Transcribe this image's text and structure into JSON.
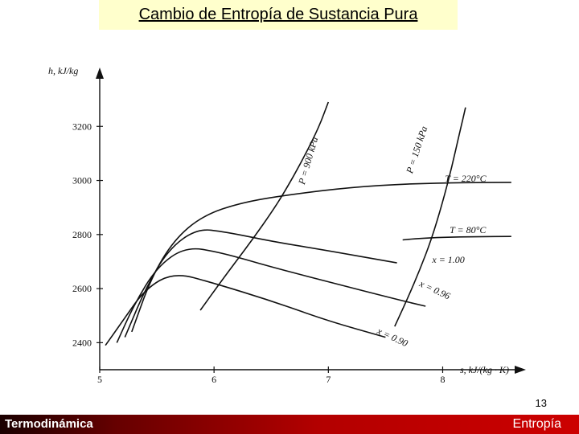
{
  "slide": {
    "title": "Cambio de Entropía de Sustancia Pura",
    "page_number": "13",
    "footer_left": "Termodinámica",
    "footer_right": "Entropía"
  },
  "colors": {
    "title_background": "#ffffcc",
    "footer_gradient_start": "#1a0000",
    "footer_gradient_end": "#cc0000",
    "curve_color": "#111111"
  },
  "chart_data": {
    "type": "line",
    "xlabel": "s, kJ/(kg · K)",
    "ylabel": "h, kJ/kg",
    "xlim": [
      5.0,
      8.7
    ],
    "ylim": [
      2300,
      3400
    ],
    "x_ticks": [
      {
        "value": 5,
        "label": "5"
      },
      {
        "value": 6,
        "label": "6"
      },
      {
        "value": 7,
        "label": "7"
      },
      {
        "value": 8,
        "label": "8"
      }
    ],
    "y_ticks": [
      {
        "value": 2400,
        "label": "2400"
      },
      {
        "value": 2600,
        "label": "2600"
      },
      {
        "value": 2800,
        "label": "2800"
      },
      {
        "value": 3000,
        "label": "3000"
      },
      {
        "value": 3200,
        "label": "3200"
      }
    ],
    "grid": false,
    "series": [
      {
        "name": "P = 900 kPa",
        "label_at": [
          6.85,
          3070
        ],
        "label_angle": -74,
        "points": [
          [
            5.88,
            2520
          ],
          [
            6.05,
            2620
          ],
          [
            6.2,
            2705
          ],
          [
            6.35,
            2790
          ],
          [
            6.5,
            2880
          ],
          [
            6.62,
            2960
          ],
          [
            6.78,
            3080
          ],
          [
            6.92,
            3200
          ],
          [
            7.0,
            3290
          ]
        ]
      },
      {
        "name": "P = 150 kPa",
        "label_at": [
          7.8,
          3110
        ],
        "label_angle": -72,
        "points": [
          [
            7.58,
            2460
          ],
          [
            7.7,
            2570
          ],
          [
            7.8,
            2670
          ],
          [
            7.9,
            2780
          ],
          [
            8.0,
            2920
          ],
          [
            8.08,
            3050
          ],
          [
            8.15,
            3180
          ],
          [
            8.2,
            3270
          ]
        ]
      },
      {
        "name": "T = 220°C",
        "label_at": [
          8.2,
          2995
        ],
        "label_angle": 0,
        "points": [
          [
            5.28,
            2440
          ],
          [
            5.45,
            2640
          ],
          [
            5.65,
            2780
          ],
          [
            5.9,
            2870
          ],
          [
            6.25,
            2920
          ],
          [
            6.7,
            2950
          ],
          [
            7.2,
            2975
          ],
          [
            7.7,
            2988
          ],
          [
            8.2,
            2992
          ],
          [
            8.6,
            2993
          ]
        ]
      },
      {
        "name": "T = 80°C",
        "label_at": [
          8.22,
          2805
        ],
        "label_angle": 0,
        "points": [
          [
            7.65,
            2780
          ],
          [
            7.8,
            2786
          ],
          [
            8.0,
            2790
          ],
          [
            8.3,
            2792
          ],
          [
            8.6,
            2793
          ]
        ]
      },
      {
        "name": "x = 1.00",
        "label_at": [
          8.05,
          2695
        ],
        "label_angle": 0,
        "points": [
          [
            5.22,
            2420
          ],
          [
            5.4,
            2600
          ],
          [
            5.6,
            2745
          ],
          [
            5.85,
            2822
          ],
          [
            6.1,
            2810
          ],
          [
            6.5,
            2775
          ],
          [
            7.0,
            2740
          ],
          [
            7.6,
            2695
          ]
        ]
      },
      {
        "name": "x = 0.96",
        "label_at": [
          7.92,
          2585
        ],
        "label_angle": 25,
        "points": [
          [
            5.15,
            2400
          ],
          [
            5.3,
            2540
          ],
          [
            5.5,
            2680
          ],
          [
            5.75,
            2755
          ],
          [
            6.05,
            2735
          ],
          [
            6.5,
            2680
          ],
          [
            7.0,
            2625
          ],
          [
            7.6,
            2560
          ],
          [
            7.85,
            2535
          ]
        ]
      },
      {
        "name": "x = 0.90",
        "label_at": [
          7.55,
          2410
        ],
        "label_angle": 25,
        "points": [
          [
            5.05,
            2390
          ],
          [
            5.2,
            2480
          ],
          [
            5.4,
            2600
          ],
          [
            5.65,
            2660
          ],
          [
            6.0,
            2620
          ],
          [
            6.5,
            2555
          ],
          [
            7.0,
            2480
          ],
          [
            7.5,
            2420
          ]
        ]
      }
    ]
  }
}
